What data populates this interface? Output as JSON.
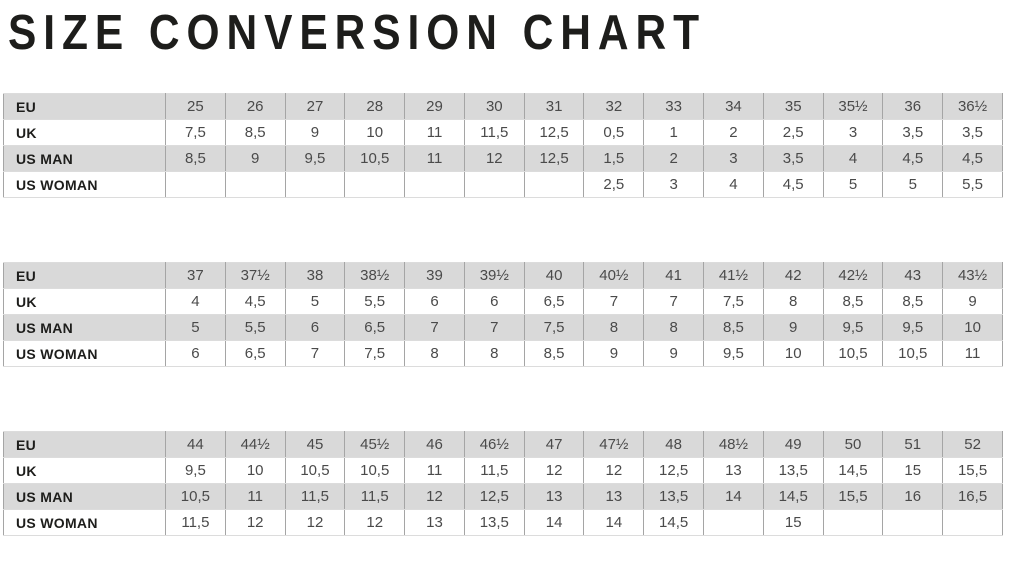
{
  "title": "SIZE CONVERSION CHART",
  "colors": {
    "shaded_row": "#d9d9d9",
    "vertical_border": "#a5a5a5",
    "horizontal_border": "#dcdcdc",
    "outer_border": "#c0c0c0",
    "label_text": "#1d1d1b",
    "value_text": "#4a4a4a",
    "title_text": "#1d1d1b"
  },
  "tables": [
    {
      "name": "sizes-eu-25-to-36half",
      "rows": [
        {
          "label": "EU",
          "values": [
            "25",
            "26",
            "27",
            "28",
            "29",
            "30",
            "31",
            "32",
            "33",
            "34",
            "35",
            "35½",
            "36",
            "36½"
          ]
        },
        {
          "label": "UK",
          "values": [
            "7,5",
            "8,5",
            "9",
            "10",
            "11",
            "11,5",
            "12,5",
            "0,5",
            "1",
            "2",
            "2,5",
            "3",
            "3,5",
            "3,5"
          ]
        },
        {
          "label": "US MAN",
          "values": [
            "8,5",
            "9",
            "9,5",
            "10,5",
            "11",
            "12",
            "12,5",
            "1,5",
            "2",
            "3",
            "3,5",
            "4",
            "4,5",
            "4,5"
          ]
        },
        {
          "label": "US WOMAN",
          "values": [
            "",
            "",
            "",
            "",
            "",
            "",
            "",
            "2,5",
            "3",
            "4",
            "4,5",
            "5",
            "5",
            "5,5"
          ]
        }
      ]
    },
    {
      "name": "sizes-eu-37-to-43half",
      "rows": [
        {
          "label": "EU",
          "values": [
            "37",
            "37½",
            "38",
            "38½",
            "39",
            "39½",
            "40",
            "40½",
            "41",
            "41½",
            "42",
            "42½",
            "43",
            "43½"
          ]
        },
        {
          "label": "UK",
          "values": [
            "4",
            "4,5",
            "5",
            "5,5",
            "6",
            "6",
            "6,5",
            "7",
            "7",
            "7,5",
            "8",
            "8,5",
            "8,5",
            "9"
          ]
        },
        {
          "label": "US MAN",
          "values": [
            "5",
            "5,5",
            "6",
            "6,5",
            "7",
            "7",
            "7,5",
            "8",
            "8",
            "8,5",
            "9",
            "9,5",
            "9,5",
            "10"
          ]
        },
        {
          "label": "US WOMAN",
          "values": [
            "6",
            "6,5",
            "7",
            "7,5",
            "8",
            "8",
            "8,5",
            "9",
            "9",
            "9,5",
            "10",
            "10,5",
            "10,5",
            "11"
          ]
        }
      ]
    },
    {
      "name": "sizes-eu-44-to-52",
      "rows": [
        {
          "label": "EU",
          "values": [
            "44",
            "44½",
            "45",
            "45½",
            "46",
            "46½",
            "47",
            "47½",
            "48",
            "48½",
            "49",
            "50",
            "51",
            "52"
          ]
        },
        {
          "label": "UK",
          "values": [
            "9,5",
            "10",
            "10,5",
            "10,5",
            "11",
            "11,5",
            "12",
            "12",
            "12,5",
            "13",
            "13,5",
            "14,5",
            "15",
            "15,5"
          ]
        },
        {
          "label": "US MAN",
          "values": [
            "10,5",
            "11",
            "11,5",
            "11,5",
            "12",
            "12,5",
            "13",
            "13",
            "13,5",
            "14",
            "14,5",
            "15,5",
            "16",
            "16,5"
          ]
        },
        {
          "label": "US WOMAN",
          "values": [
            "11,5",
            "12",
            "12",
            "12",
            "13",
            "13,5",
            "14",
            "14",
            "14,5",
            "",
            "15",
            "",
            "",
            ""
          ]
        }
      ]
    }
  ]
}
